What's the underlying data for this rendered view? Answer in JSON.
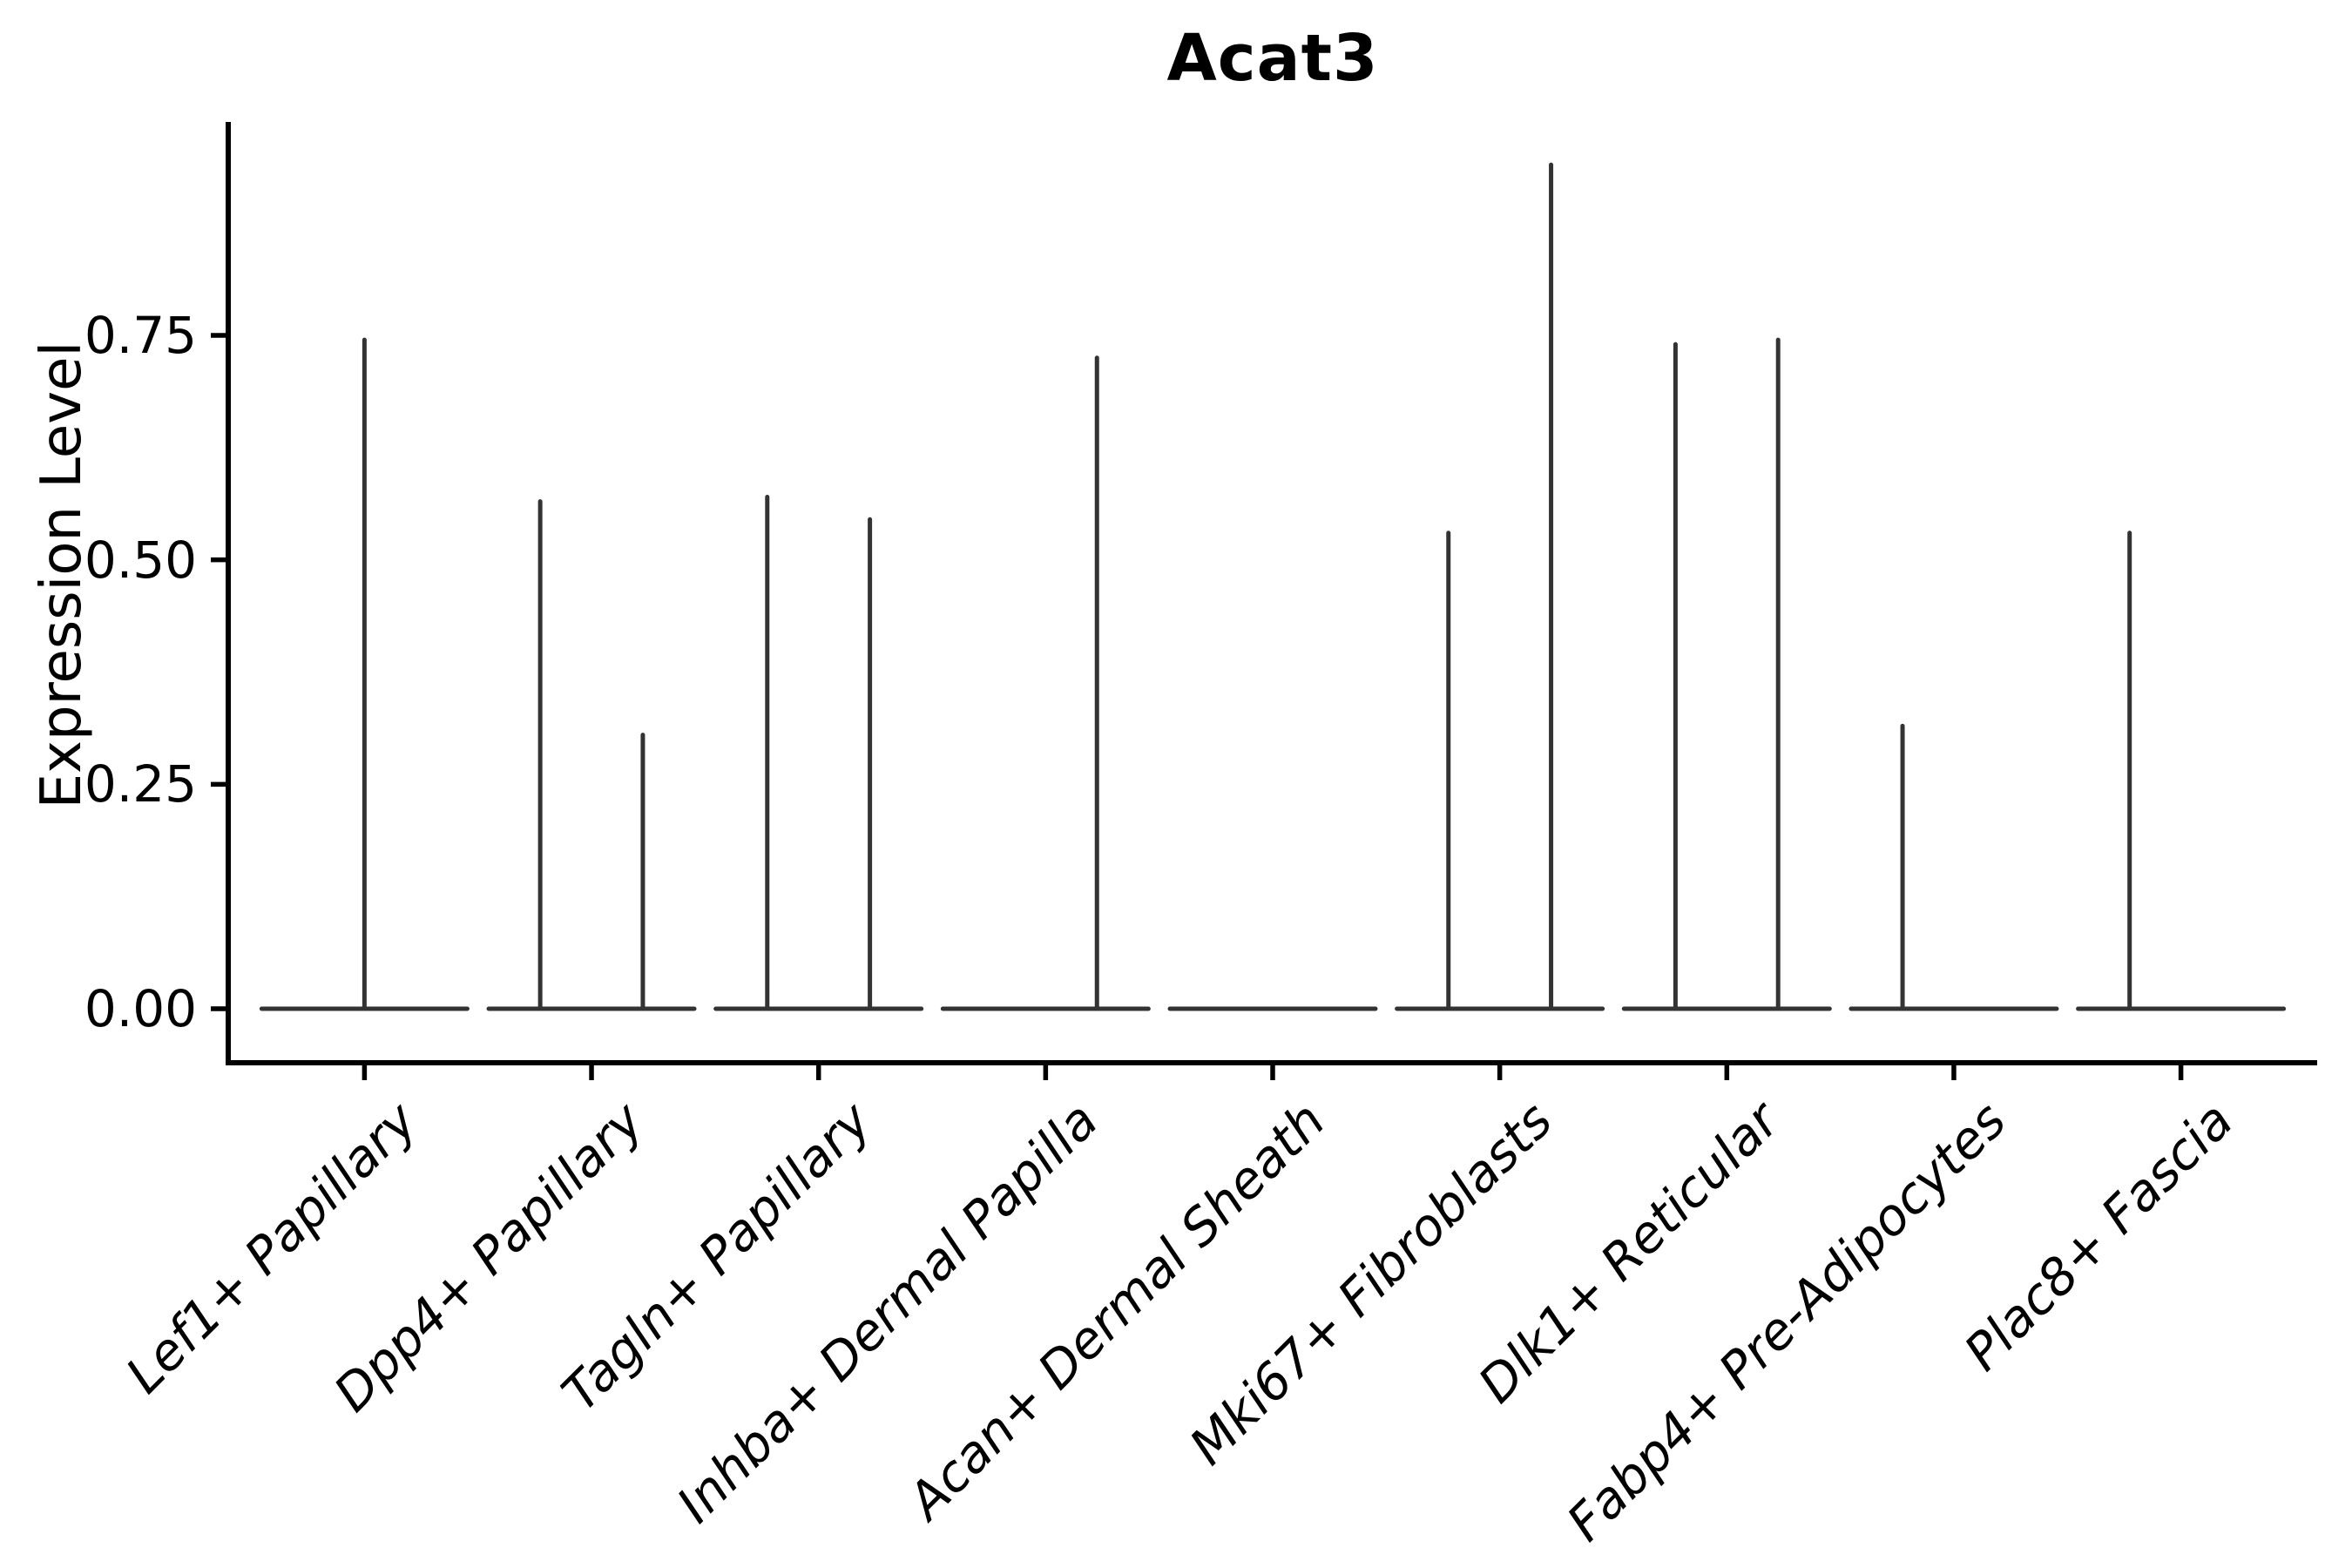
{
  "chart_data": {
    "type": "violin",
    "title": "Acat3",
    "xlabel": "",
    "ylabel": "Expression Level",
    "ytick_labels": [
      "0.00",
      "0.25",
      "0.50",
      "0.75"
    ],
    "ytick_values": [
      0,
      0.25,
      0.5,
      0.75
    ],
    "ylim": [
      -0.06,
      0.99
    ],
    "grid": "off",
    "legend": "none",
    "line_color": "#333333",
    "axis_color": "#000000",
    "background_color": "#ffffff",
    "categories": [
      "Lef1+ Papillary",
      "Dpp4+ Papillary",
      "Tagln+ Papillary",
      "Inhba+ Dermal Papilla",
      "Acan+ Dermal Sheath",
      "Mki67+ Fibroblasts",
      "Dlk1+ Reticular",
      "Fabp4+ Pre-Adipocytes",
      "Plac8+ Fascia"
    ],
    "violins": [
      {
        "category": "Lef1+ Papillary",
        "baseline_value": 0,
        "spikes": [
          {
            "offset_frac": 0,
            "max": 0.745
          }
        ]
      },
      {
        "category": "Dpp4+ Papillary",
        "baseline_value": 0,
        "spikes": [
          {
            "offset_frac": -0.226,
            "max": 0.565
          },
          {
            "offset_frac": 0.226,
            "max": 0.305
          }
        ]
      },
      {
        "category": "Tagln+ Papillary",
        "baseline_value": 0,
        "spikes": [
          {
            "offset_frac": -0.226,
            "max": 0.57
          },
          {
            "offset_frac": 0.226,
            "max": 0.545
          }
        ]
      },
      {
        "category": "Inhba+ Dermal Papilla",
        "baseline_value": 0,
        "spikes": [
          {
            "offset_frac": 0.226,
            "max": 0.725
          }
        ]
      },
      {
        "category": "Acan+ Dermal Sheath",
        "baseline_value": 0,
        "spikes": []
      },
      {
        "category": "Mki67+ Fibroblasts",
        "baseline_value": 0,
        "spikes": [
          {
            "offset_frac": -0.226,
            "max": 0.53
          },
          {
            "offset_frac": 0.226,
            "max": 0.94
          }
        ]
      },
      {
        "category": "Dlk1+ Reticular",
        "baseline_value": 0,
        "spikes": [
          {
            "offset_frac": -0.226,
            "max": 0.74
          },
          {
            "offset_frac": 0.226,
            "max": 0.745
          }
        ]
      },
      {
        "category": "Fabp4+ Pre-Adipocytes",
        "baseline_value": 0,
        "spikes": [
          {
            "offset_frac": -0.226,
            "max": 0.315
          }
        ]
      },
      {
        "category": "Plac8+ Fascia",
        "baseline_value": 0,
        "spikes": [
          {
            "offset_frac": -0.226,
            "max": 0.53
          }
        ]
      }
    ]
  }
}
